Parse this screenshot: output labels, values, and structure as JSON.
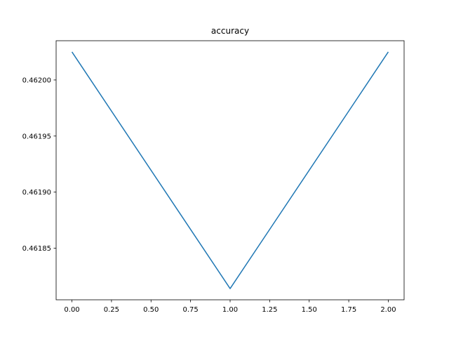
{
  "chart_data": {
    "type": "line",
    "title": "accuracy",
    "xlabel": "",
    "ylabel": "",
    "x": [
      0.0,
      1.0,
      2.0
    ],
    "series": [
      {
        "values": [
          0.462025,
          0.461814,
          0.462025
        ],
        "color": "#1f77b4"
      }
    ],
    "xlim": [
      -0.1,
      2.1
    ],
    "ylim": [
      0.461804,
      0.462035
    ],
    "xticks": [
      0.0,
      0.25,
      0.5,
      0.75,
      1.0,
      1.25,
      1.5,
      1.75,
      2.0
    ],
    "xtick_labels": [
      "0.00",
      "0.25",
      "0.50",
      "0.75",
      "1.00",
      "1.25",
      "1.50",
      "1.75",
      "2.00"
    ],
    "yticks": [
      0.46185,
      0.4619,
      0.46195,
      0.462
    ],
    "ytick_labels": [
      "0.46185",
      "0.46190",
      "0.46195",
      "0.46200"
    ],
    "grid": false,
    "legend": false
  }
}
